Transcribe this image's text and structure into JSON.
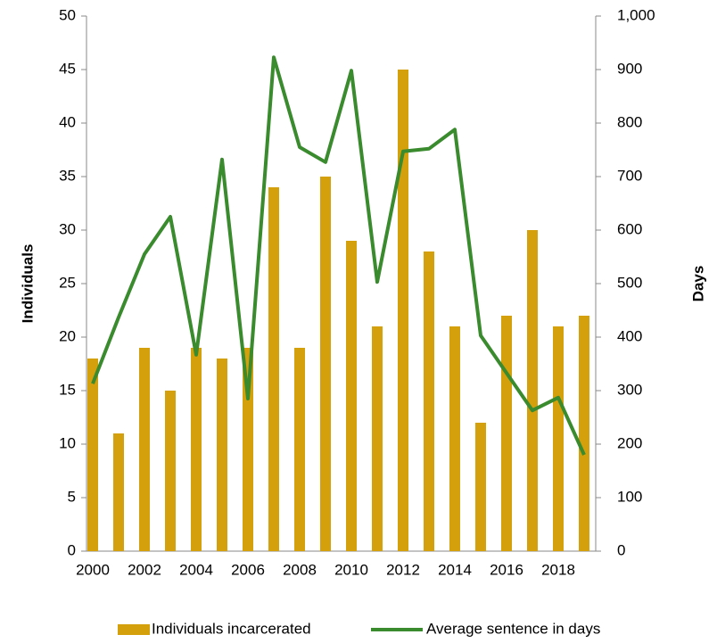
{
  "chart_data": {
    "type": "bar_line",
    "categories": [
      "2000",
      null,
      "2002",
      null,
      "2004",
      null,
      "2006",
      null,
      "2008",
      null,
      "2010",
      null,
      "2012",
      null,
      "2014",
      null,
      "2016",
      null,
      "2018",
      null
    ],
    "series": [
      {
        "name": "Individuals incarcerated",
        "color": "#d4a00c",
        "type": "bar",
        "axis": "y",
        "values": [
          18,
          11,
          19,
          15,
          19,
          18,
          19,
          34,
          19,
          35,
          29,
          21,
          45,
          28,
          21,
          12,
          22,
          30,
          21,
          22
        ]
      },
      {
        "name": "Average sentence in days",
        "color": "#3a8a2e",
        "type": "line",
        "axis": "y2",
        "values": [
          313,
          437,
          555,
          625,
          367,
          732,
          285,
          923,
          755,
          727,
          898,
          503,
          747,
          752,
          788,
          403,
          333,
          263,
          287,
          180
        ]
      }
    ],
    "ylabel": "Individuals",
    "y2label": "Days",
    "ylim": [
      0,
      50
    ],
    "yticks": [
      0,
      5,
      10,
      15,
      20,
      25,
      30,
      35,
      40,
      45,
      50
    ],
    "y2lim": [
      0,
      1000
    ],
    "y2ticks": [
      0,
      100,
      200,
      300,
      400,
      500,
      600,
      700,
      800,
      900,
      {
        "value": 1000,
        "label": "1,000"
      }
    ],
    "legend": "bottom"
  }
}
